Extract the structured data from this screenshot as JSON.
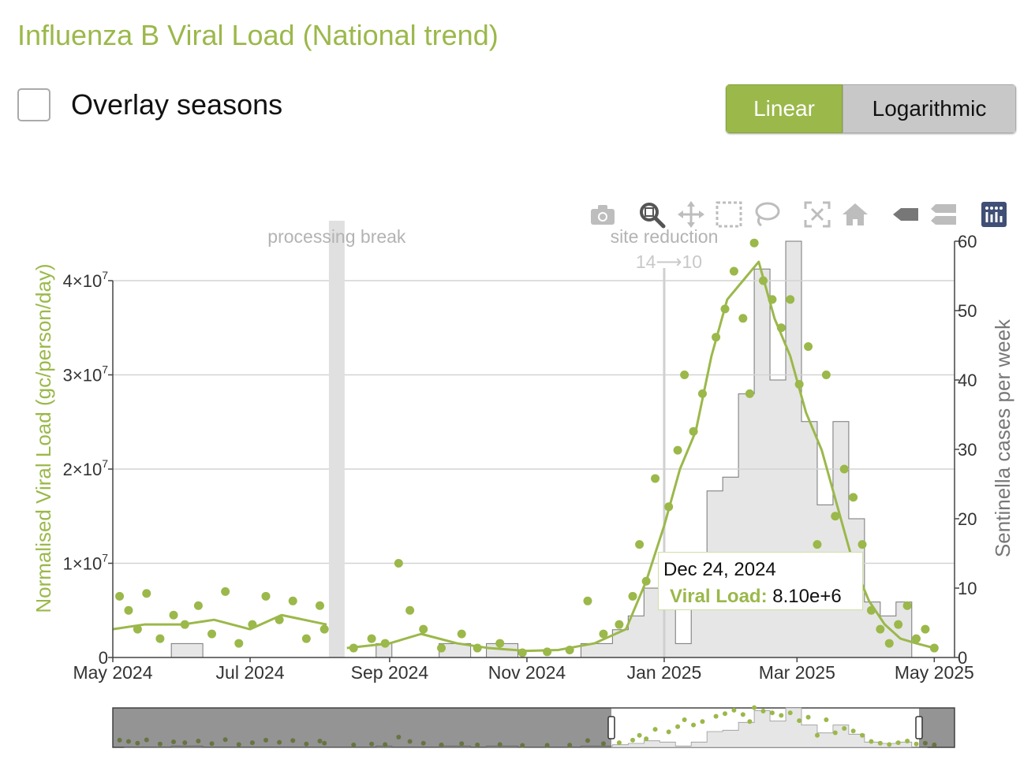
{
  "title": "Influenza B Viral Load (National trend)",
  "overlay": {
    "label": "Overlay seasons",
    "checked": false
  },
  "scale_toggle": {
    "options": [
      "Linear",
      "Logarithmic"
    ],
    "selected": "Linear"
  },
  "modebar": {
    "icons": [
      "camera-icon",
      "zoom-icon",
      "pan-icon",
      "box-select-icon",
      "lasso-select-icon",
      "autoscale-icon",
      "home-icon",
      "hover-closest-icon",
      "hover-compare-icon",
      "plotly-logo-icon"
    ],
    "active": "zoom-icon"
  },
  "tooltip": {
    "date": "Dec 24, 2024",
    "key": "Viral Load:",
    "value": "8.10e+6"
  },
  "colors": {
    "accent": "#9bb84a",
    "accent_dark": "#5e6e2a",
    "cases_fill": "#e6e6e6",
    "cases_line": "#777777",
    "annotation": "#b3b3b3"
  },
  "chart_data": {
    "type": "scatter",
    "x_range": [
      "2024-05-01",
      "2025-05-10"
    ],
    "x_ticks": [
      {
        "date": "2024-05-01",
        "label": "May 2024"
      },
      {
        "date": "2024-07-01",
        "label": "Jul 2024"
      },
      {
        "date": "2024-09-01",
        "label": "Sep 2024"
      },
      {
        "date": "2024-11-01",
        "label": "Nov 2024"
      },
      {
        "date": "2025-01-01",
        "label": "Jan 2025"
      },
      {
        "date": "2025-03-01",
        "label": "Mar 2025"
      },
      {
        "date": "2025-05-01",
        "label": "May 2025"
      }
    ],
    "y_left": {
      "label": "Normalised Viral Load (gc/person/day)",
      "range": [
        0,
        40000000
      ],
      "ticks": [
        {
          "v": 0,
          "m": "0",
          "e": ""
        },
        {
          "v": 10000000,
          "m": "1×10",
          "e": "7"
        },
        {
          "v": 20000000,
          "m": "2×10",
          "e": "7"
        },
        {
          "v": 30000000,
          "m": "3×10",
          "e": "7"
        },
        {
          "v": 40000000,
          "m": "4×10",
          "e": "7"
        }
      ]
    },
    "y_right": {
      "label": "Sentinella cases per week",
      "range": [
        0,
        60
      ],
      "ticks": [
        "0",
        "10",
        "20",
        "30",
        "40",
        "50",
        "60"
      ]
    },
    "grid": true,
    "annotations": [
      {
        "type": "band",
        "text": "processing break",
        "start": "2024-08-05",
        "end": "2024-08-12"
      },
      {
        "type": "line",
        "text": "site reduction",
        "text2": "14⟶10",
        "date": "2025-01-01"
      }
    ],
    "cases_weekly": [
      {
        "week": "2024-05-06",
        "cases": 0
      },
      {
        "week": "2024-05-13",
        "cases": 0
      },
      {
        "week": "2024-05-20",
        "cases": 0
      },
      {
        "week": "2024-05-27",
        "cases": 2
      },
      {
        "week": "2024-06-03",
        "cases": 2
      },
      {
        "week": "2024-06-10",
        "cases": 0
      },
      {
        "week": "2024-06-17",
        "cases": 0
      },
      {
        "week": "2024-06-24",
        "cases": 0
      },
      {
        "week": "2024-07-01",
        "cases": 0
      },
      {
        "week": "2024-07-08",
        "cases": 0
      },
      {
        "week": "2024-07-15",
        "cases": 0
      },
      {
        "week": "2024-07-22",
        "cases": 0
      },
      {
        "week": "2024-07-29",
        "cases": 0
      },
      {
        "week": "2024-08-05",
        "cases": 0
      },
      {
        "week": "2024-08-12",
        "cases": 0
      },
      {
        "week": "2024-08-19",
        "cases": 0
      },
      {
        "week": "2024-08-26",
        "cases": 2
      },
      {
        "week": "2024-09-02",
        "cases": 0
      },
      {
        "week": "2024-09-09",
        "cases": 0
      },
      {
        "week": "2024-09-16",
        "cases": 0
      },
      {
        "week": "2024-09-23",
        "cases": 2
      },
      {
        "week": "2024-09-30",
        "cases": 2
      },
      {
        "week": "2024-10-07",
        "cases": 0
      },
      {
        "week": "2024-10-14",
        "cases": 2
      },
      {
        "week": "2024-10-21",
        "cases": 2
      },
      {
        "week": "2024-10-28",
        "cases": 0
      },
      {
        "week": "2024-11-04",
        "cases": 0
      },
      {
        "week": "2024-11-11",
        "cases": 0
      },
      {
        "week": "2024-11-18",
        "cases": 0
      },
      {
        "week": "2024-11-25",
        "cases": 2
      },
      {
        "week": "2024-12-02",
        "cases": 2
      },
      {
        "week": "2024-12-09",
        "cases": 4
      },
      {
        "week": "2024-12-16",
        "cases": 6
      },
      {
        "week": "2024-12-23",
        "cases": 10
      },
      {
        "week": "2024-12-30",
        "cases": 8
      },
      {
        "week": "2025-01-06",
        "cases": 2
      },
      {
        "week": "2025-01-13",
        "cases": 8
      },
      {
        "week": "2025-01-20",
        "cases": 24
      },
      {
        "week": "2025-01-27",
        "cases": 26
      },
      {
        "week": "2025-02-03",
        "cases": 38
      },
      {
        "week": "2025-02-10",
        "cases": 56
      },
      {
        "week": "2025-02-17",
        "cases": 40
      },
      {
        "week": "2025-02-24",
        "cases": 60
      },
      {
        "week": "2025-03-03",
        "cases": 34
      },
      {
        "week": "2025-03-10",
        "cases": 22
      },
      {
        "week": "2025-03-17",
        "cases": 34
      },
      {
        "week": "2025-03-24",
        "cases": 20
      },
      {
        "week": "2025-03-31",
        "cases": 8
      },
      {
        "week": "2025-04-07",
        "cases": 6
      },
      {
        "week": "2025-04-14",
        "cases": 8
      },
      {
        "week": "2025-04-21",
        "cases": 0
      }
    ],
    "viral_load_trend": [
      {
        "date": "2024-05-01",
        "v": 3000000
      },
      {
        "date": "2024-05-15",
        "v": 3500000
      },
      {
        "date": "2024-06-01",
        "v": 3500000
      },
      {
        "date": "2024-06-15",
        "v": 4000000
      },
      {
        "date": "2024-07-01",
        "v": 3000000
      },
      {
        "date": "2024-07-15",
        "v": 4500000
      },
      {
        "date": "2024-08-04",
        "v": 3500000
      },
      {
        "date": "2024-08-13",
        "v": 1000000
      },
      {
        "date": "2024-09-01",
        "v": 1500000
      },
      {
        "date": "2024-09-15",
        "v": 2500000
      },
      {
        "date": "2024-10-01",
        "v": 1500000
      },
      {
        "date": "2024-10-15",
        "v": 1000000
      },
      {
        "date": "2024-11-01",
        "v": 700000
      },
      {
        "date": "2024-11-15",
        "v": 800000
      },
      {
        "date": "2024-12-01",
        "v": 1500000
      },
      {
        "date": "2024-12-15",
        "v": 3000000
      },
      {
        "date": "2024-12-24",
        "v": 8100000
      },
      {
        "date": "2025-01-01",
        "v": 14000000
      },
      {
        "date": "2025-01-08",
        "v": 20000000
      },
      {
        "date": "2025-01-15",
        "v": 24000000
      },
      {
        "date": "2025-01-22",
        "v": 32000000
      },
      {
        "date": "2025-01-29",
        "v": 38000000
      },
      {
        "date": "2025-02-05",
        "v": 40000000
      },
      {
        "date": "2025-02-12",
        "v": 42000000
      },
      {
        "date": "2025-02-19",
        "v": 36000000
      },
      {
        "date": "2025-02-26",
        "v": 32000000
      },
      {
        "date": "2025-03-05",
        "v": 26000000
      },
      {
        "date": "2025-03-12",
        "v": 22000000
      },
      {
        "date": "2025-03-19",
        "v": 16000000
      },
      {
        "date": "2025-03-26",
        "v": 10000000
      },
      {
        "date": "2025-04-02",
        "v": 6000000
      },
      {
        "date": "2025-04-09",
        "v": 3500000
      },
      {
        "date": "2025-04-16",
        "v": 2000000
      },
      {
        "date": "2025-04-23",
        "v": 1500000
      },
      {
        "date": "2025-05-01",
        "v": 1000000
      }
    ],
    "viral_load_points": [
      {
        "date": "2024-05-04",
        "v": 6500000
      },
      {
        "date": "2024-05-08",
        "v": 5000000
      },
      {
        "date": "2024-05-12",
        "v": 3000000
      },
      {
        "date": "2024-05-16",
        "v": 6800000
      },
      {
        "date": "2024-05-22",
        "v": 2000000
      },
      {
        "date": "2024-05-28",
        "v": 4500000
      },
      {
        "date": "2024-06-02",
        "v": 3500000
      },
      {
        "date": "2024-06-08",
        "v": 5500000
      },
      {
        "date": "2024-06-14",
        "v": 2500000
      },
      {
        "date": "2024-06-20",
        "v": 7000000
      },
      {
        "date": "2024-06-26",
        "v": 1500000
      },
      {
        "date": "2024-07-02",
        "v": 3500000
      },
      {
        "date": "2024-07-08",
        "v": 6500000
      },
      {
        "date": "2024-07-14",
        "v": 4000000
      },
      {
        "date": "2024-07-20",
        "v": 6000000
      },
      {
        "date": "2024-07-26",
        "v": 2000000
      },
      {
        "date": "2024-08-01",
        "v": 5500000
      },
      {
        "date": "2024-08-03",
        "v": 3000000
      },
      {
        "date": "2024-08-16",
        "v": 1000000
      },
      {
        "date": "2024-08-24",
        "v": 2000000
      },
      {
        "date": "2024-08-30",
        "v": 1500000
      },
      {
        "date": "2024-09-05",
        "v": 10000000
      },
      {
        "date": "2024-09-10",
        "v": 5000000
      },
      {
        "date": "2024-09-16",
        "v": 3000000
      },
      {
        "date": "2024-09-24",
        "v": 1000000
      },
      {
        "date": "2024-10-03",
        "v": 2500000
      },
      {
        "date": "2024-10-10",
        "v": 1000000
      },
      {
        "date": "2024-10-20",
        "v": 1500000
      },
      {
        "date": "2024-10-30",
        "v": 500000
      },
      {
        "date": "2024-11-10",
        "v": 600000
      },
      {
        "date": "2024-11-20",
        "v": 800000
      },
      {
        "date": "2024-11-28",
        "v": 6000000
      },
      {
        "date": "2024-12-05",
        "v": 2500000
      },
      {
        "date": "2024-12-12",
        "v": 3500000
      },
      {
        "date": "2024-12-18",
        "v": 6500000
      },
      {
        "date": "2024-12-21",
        "v": 12000000
      },
      {
        "date": "2024-12-24",
        "v": 8100000
      },
      {
        "date": "2024-12-28",
        "v": 19000000
      },
      {
        "date": "2025-01-03",
        "v": 16000000
      },
      {
        "date": "2025-01-07",
        "v": 22000000
      },
      {
        "date": "2025-01-10",
        "v": 30000000
      },
      {
        "date": "2025-01-14",
        "v": 24000000
      },
      {
        "date": "2025-01-18",
        "v": 28000000
      },
      {
        "date": "2025-01-24",
        "v": 34000000
      },
      {
        "date": "2025-01-28",
        "v": 37000000
      },
      {
        "date": "2025-02-01",
        "v": 41000000
      },
      {
        "date": "2025-02-05",
        "v": 36000000
      },
      {
        "date": "2025-02-08",
        "v": 28000000
      },
      {
        "date": "2025-02-10",
        "v": 44000000
      },
      {
        "date": "2025-02-14",
        "v": 40000000
      },
      {
        "date": "2025-02-18",
        "v": 38000000
      },
      {
        "date": "2025-02-22",
        "v": 35000000
      },
      {
        "date": "2025-02-26",
        "v": 38000000
      },
      {
        "date": "2025-03-02",
        "v": 29000000
      },
      {
        "date": "2025-03-06",
        "v": 33000000
      },
      {
        "date": "2025-03-10",
        "v": 12000000
      },
      {
        "date": "2025-03-14",
        "v": 30000000
      },
      {
        "date": "2025-03-18",
        "v": 15000000
      },
      {
        "date": "2025-03-22",
        "v": 20000000
      },
      {
        "date": "2025-03-26",
        "v": 17000000
      },
      {
        "date": "2025-03-30",
        "v": 12000000
      },
      {
        "date": "2025-04-03",
        "v": 5000000
      },
      {
        "date": "2025-04-07",
        "v": 3000000
      },
      {
        "date": "2025-04-11",
        "v": 1500000
      },
      {
        "date": "2025-04-15",
        "v": 3500000
      },
      {
        "date": "2025-04-19",
        "v": 5500000
      },
      {
        "date": "2025-04-23",
        "v": 2000000
      },
      {
        "date": "2025-04-27",
        "v": 3000000
      },
      {
        "date": "2025-05-01",
        "v": 1000000
      }
    ]
  }
}
